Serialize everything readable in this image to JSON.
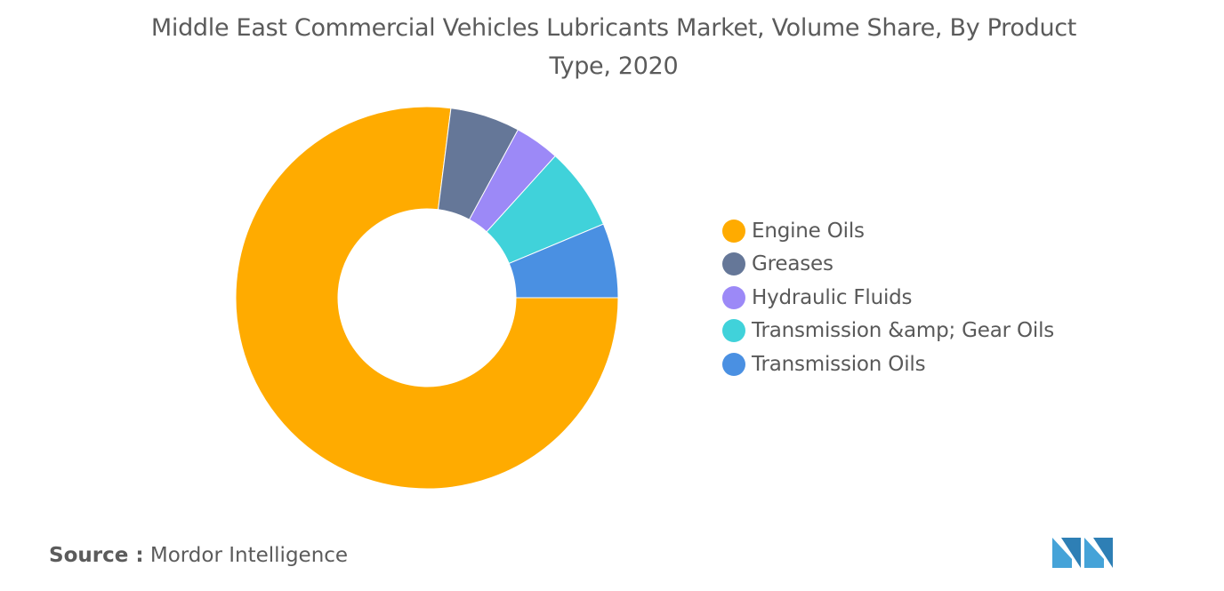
{
  "chart_data": {
    "type": "pie",
    "title": "Middle East Commercial Vehicles Lubricants Market, Volume Share, By Product Type, 2020",
    "donut": true,
    "legend_position": "right",
    "slices": [
      {
        "label": "Engine Oils",
        "value": 77.0,
        "color": "#FFAB00"
      },
      {
        "label": "Greases",
        "value": 5.9,
        "color": "#657798"
      },
      {
        "label": "Hydraulic Fluids",
        "value": 3.8,
        "color": "#9C89F7"
      },
      {
        "label": "Transmission &amp; Gear Oils",
        "value": 7.0,
        "color": "#40D2DA"
      },
      {
        "label": "Transmission Oils",
        "value": 6.3,
        "color": "#4A90E2"
      }
    ]
  },
  "source": {
    "key": "Source :",
    "value": "Mordor Intelligence"
  },
  "logo": {
    "name": "mordor-intelligence-logo",
    "color": "#45A3D8"
  }
}
